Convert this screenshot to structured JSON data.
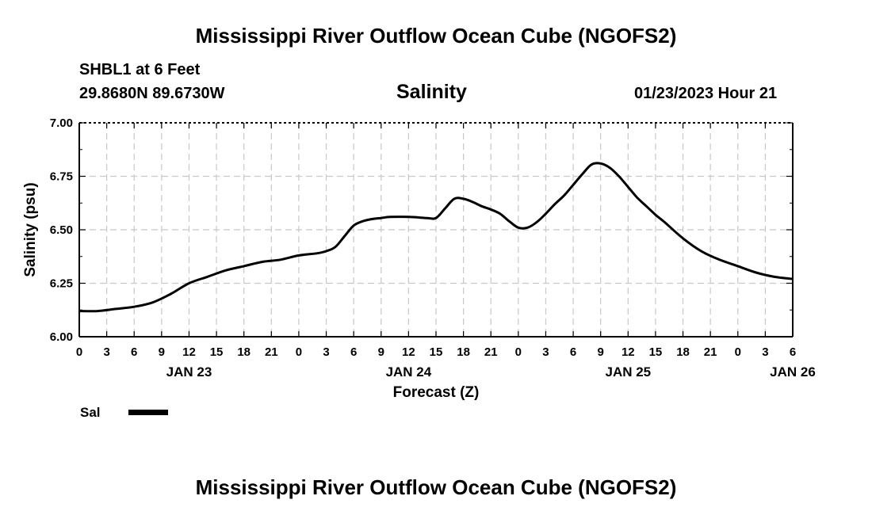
{
  "titles": {
    "main": "Mississippi River Outflow Ocean Cube (NGOFS2)",
    "repeat": "Mississippi River Outflow Ocean Cube (NGOFS2)"
  },
  "header": {
    "station": "SHBL1 at 6 Feet",
    "coordinates": "29.8680N  89.6730W",
    "datetime": "01/23/2023 Hour 21"
  },
  "legend": {
    "label": "Sal",
    "color": "#000000"
  },
  "chart_data": {
    "type": "line",
    "title": "Salinity",
    "xlabel": "Forecast (Z)",
    "ylabel": "Salinity (psu)",
    "ylim": [
      6.0,
      7.0
    ],
    "xlim": [
      0,
      78
    ],
    "y_ticks": [
      "6.00",
      "6.25",
      "6.50",
      "6.75",
      "7.00"
    ],
    "x_ticks": [
      "0",
      "3",
      "6",
      "9",
      "12",
      "15",
      "18",
      "21",
      "0",
      "3",
      "6",
      "9",
      "12",
      "15",
      "18",
      "21",
      "0",
      "3",
      "6",
      "9",
      "12",
      "15",
      "18",
      "21",
      "0",
      "3",
      "6"
    ],
    "date_labels": [
      {
        "label": "JAN 23",
        "hour": 12
      },
      {
        "label": "JAN 24",
        "hour": 36
      },
      {
        "label": "JAN 25",
        "hour": 60
      },
      {
        "label": "JAN 26",
        "hour": 78
      }
    ],
    "grid": true,
    "series": [
      {
        "name": "Sal",
        "x": [
          0,
          2,
          4,
          6,
          8,
          10,
          12,
          14,
          16,
          18,
          20,
          22,
          24,
          26,
          27,
          28,
          29,
          30,
          31,
          32,
          33,
          34,
          36,
          38,
          39,
          40,
          41,
          42,
          43,
          44,
          45,
          46,
          47,
          48,
          49,
          50,
          51,
          52,
          53,
          54,
          55,
          56,
          57,
          58,
          59,
          60,
          61,
          62,
          63,
          64,
          66,
          68,
          70,
          72,
          74,
          76,
          78
        ],
        "values": [
          6.12,
          6.12,
          6.13,
          6.14,
          6.16,
          6.2,
          6.25,
          6.28,
          6.31,
          6.33,
          6.35,
          6.36,
          6.38,
          6.39,
          6.4,
          6.42,
          6.47,
          6.52,
          6.54,
          6.55,
          6.555,
          6.56,
          6.56,
          6.555,
          6.555,
          6.6,
          6.645,
          6.645,
          6.63,
          6.61,
          6.595,
          6.575,
          6.54,
          6.51,
          6.51,
          6.535,
          6.575,
          6.62,
          6.66,
          6.71,
          6.76,
          6.805,
          6.81,
          6.79,
          6.75,
          6.7,
          6.65,
          6.61,
          6.57,
          6.535,
          6.46,
          6.4,
          6.36,
          6.33,
          6.3,
          6.28,
          6.27
        ]
      }
    ]
  }
}
